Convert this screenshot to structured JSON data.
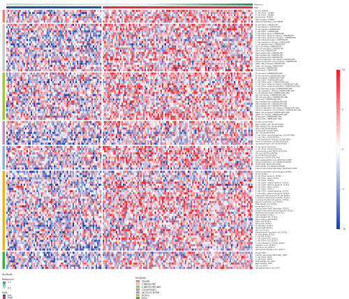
{
  "chart_data": {
    "type": "heatmap",
    "top_annotations": [
      {
        "name": "Riskscore",
        "type": "continuous",
        "colors": [
          "#b7e4d5",
          "#1f9e5f"
        ]
      },
      {
        "name": "Risk",
        "type": "categorical",
        "groups": [
          {
            "label": "low",
            "color": "#2b57a7",
            "fraction": 0.39
          },
          {
            "label": "high",
            "color": "#e8343c",
            "fraction": 0.61
          }
        ]
      }
    ],
    "color_scale": {
      "range": [
        -10,
        10
      ],
      "ticks": [
        10,
        5,
        0,
        -5,
        -10
      ],
      "colors": [
        "#1f3fa8",
        "#ffffff",
        "#e8202a"
      ]
    },
    "method_groups": [
      {
        "method": "TIMER",
        "color": "#e8867c",
        "rows": [
          "B cell_TIMER",
          "T cell CD4+_TIMER",
          "T cell CD8+_TIMER",
          "Neutrophil_TIMER",
          "Macrophage_TIMER",
          "Myeloid dendritic cell_TIMER"
        ]
      },
      {
        "method": "CIBERSORT",
        "color": "#c9c9c9",
        "rows": [
          "B cell naive_CIBERSORT",
          "B cell memory_CIBERSORT",
          "B cell plasma_CIBERSORT",
          "T cell CD8+_CIBERSORT",
          "T cell CD4+ naive_CIBERSORT",
          "T cell CD4+ memory resting_CIBERSORT",
          "T cell CD4+ memory activated_CIBERSORT",
          "T cell follicular helper_CIBERSORT",
          "T cell regulatory (Tregs)_CIBERSORT",
          "T cell gamma delta_CIBERSORT",
          "NK cell resting_CIBERSORT",
          "NK cell activated_CIBERSORT",
          "Monocyte_CIBERSORT",
          "Macrophage M0_CIBERSORT",
          "Macrophage M1_CIBERSORT",
          "Macrophage M2_CIBERSORT",
          "Myeloid dendritic cell resting_CIBERSORT",
          "Myeloid dendritic cell activated_CIBERSORT",
          "Mast cell activated_CIBERSORT",
          "Mast cell resting_CIBERSORT",
          "Eosinophil_CIBERSORT",
          "Neutrophil_CIBERSORT"
        ]
      },
      {
        "method": "CIBERSORT-ABS",
        "color": "#a4c639",
        "rows": [
          "B cell naive_CIBERSORT-ABS",
          "B cell memory_CIBERSORT-ABS",
          "B cell plasma_CIBERSORT-ABS",
          "T cell CD8+_CIBERSORT-ABS",
          "T cell CD4+ naive_CIBERSORT-ABS",
          "T cell CD4+ memory resting_CIBERSORT-ABS",
          "T cell CD4+ memory activated_CIBERSORT-ABS",
          "T cell follicular helper_CIBERSORT-ABS",
          "T cell regulatory (Tregs)_CIBERSORT-ABS",
          "T cell gamma delta_CIBERSORT-ABS",
          "NK cell resting_CIBERSORT-ABS",
          "NK cell activated_CIBERSORT-ABS",
          "Monocyte_CIBERSORT-ABS",
          "Macrophage M0_CIBERSORT-ABS",
          "Macrophage M1_CIBERSORT-ABS",
          "Macrophage M2_CIBERSORT-ABS",
          "Myeloid dendritic cell resting_CIBERSORT-ABS",
          "Myeloid dendritic cell activated_CIBERSORT-ABS",
          "Mast cell activated_CIBERSORT-ABS",
          "Mast cell resting_CIBERSORT-ABS",
          "Eosinophil_CIBERSORT-ABS",
          "Neutrophil_CIBERSORT-ABS"
        ]
      },
      {
        "method": "QUANTISEQ",
        "color": "#c58fc2",
        "rows": [
          "B cell_QUANTISEQ",
          "Macrophage M1_QUANTISEQ",
          "Macrophage M2_QUANTISEQ",
          "Monocyte_QUANTISEQ",
          "Neutrophil_QUANTISEQ",
          "NK cell_QUANTISEQ",
          "T cell CD4+ (non-regulatory)_QUANTISEQ",
          "T cell CD8+_QUANTISEQ",
          "T cell regulatory (Tregs)_QUANTISEQ",
          "Myeloid dendritic cell_QUANTISEQ",
          "uncharacterized cell_QUANTISEQ"
        ]
      },
      {
        "method": "MCPCOUNTER",
        "color": "#8fb0dd",
        "rows": [
          "T cell_MCPCOUNTER",
          "T cell CD8+_MCPCOUNTER",
          "cytotoxicity score_MCPCOUNTER",
          "NK cell_MCPCOUNTER",
          "B cell_MCPCOUNTER",
          "Monocyte_MCPCOUNTER",
          "Macrophage/Monocyte_MCPCOUNTER",
          "Myeloid dendritic cell_MCPCOUNTER",
          "Neutrophil_MCPCOUNTER",
          "Endothelial cell_MCPCOUNTER",
          "Cancer associated fibroblast_MCPCOUNTER"
        ]
      },
      {
        "method": "XCELL",
        "color": "#f0b429",
        "rows": [
          "Myeloid dendritic cell activated_XCELL",
          "B cell_XCELL",
          "T cell CD4+ memory_XCELL",
          "T cell CD4+ naive_XCELL",
          "T cell CD4+_XCELL",
          "T cell CD4+ central memory_XCELL",
          "T cell CD4+ effector memory_XCELL",
          "T cell CD8+ naive_XCELL",
          "T cell CD8+_XCELL",
          "T cell CD8+ central memory_XCELL",
          "T cell CD8+ effector memory_XCELL",
          "Class-switched memory B cell_XCELL",
          "Common lymphoid progenitor_XCELL",
          "Common myeloid progenitor_XCELL",
          "Myeloid dendritic cell_XCELL",
          "Endothelial cell_XCELL",
          "Eosinophil_XCELL",
          "Cancer associated fibroblast_XCELL",
          "Granulocyte-monocyte progenitor_XCELL",
          "Hematopoietic stem cell_XCELL",
          "Macrophage_XCELL",
          "Macrophage M1_XCELL",
          "Macrophage M2_XCELL",
          "Mast cell_XCELL",
          "Monocyte_XCELL",
          "B cell naive_XCELL",
          "Neutrophil_XCELL",
          "NK cell_XCELL",
          "Plasmacytoid dendritic cell_XCELL",
          "B cell plasma_XCELL",
          "T cell NK_XCELL",
          "T cell CD4+ Th1_XCELL",
          "T cell CD4+ Th2_XCELL",
          "T cell regulatory (Tregs)_XCELL",
          "immune score_XCELL",
          "stroma score_XCELL",
          "microenvironment score_XCELL"
        ]
      },
      {
        "method": "EPIC",
        "color": "#3db24b",
        "rows": [
          "B cell_EPIC",
          "Cancer associated fibroblast_EPIC",
          "T cell CD4+_EPIC",
          "T cell CD8+_EPIC",
          "Endothelial cell_EPIC",
          "Macrophage_EPIC",
          "NK cell_EPIC",
          "uncharacterized cell_EPIC"
        ]
      }
    ]
  },
  "legends": {
    "methods": {
      "title": "Methods",
      "items": [
        {
          "label": "TIMER",
          "color": "#e8867c"
        },
        {
          "label": "CIBERSORT",
          "color": "#c9c9c9"
        },
        {
          "label": "CIBERSORT-ABS",
          "color": "#a4c639"
        },
        {
          "label": "QUANTISEQ",
          "color": "#c58fc2"
        },
        {
          "label": "MCPCOUNTER",
          "color": "#8fb0dd"
        },
        {
          "label": "XCELL",
          "color": "#f0b429"
        },
        {
          "label": "EPIC",
          "color": "#3db24b"
        }
      ]
    },
    "riskscore": {
      "title": "Riskscore",
      "ticks": [
        "2.5",
        "0.5"
      ]
    },
    "risk": {
      "title": "Risk",
      "items": [
        {
          "label": "low",
          "color": "#2b57a7"
        },
        {
          "label": "high",
          "color": "#e8343c"
        }
      ]
    }
  }
}
